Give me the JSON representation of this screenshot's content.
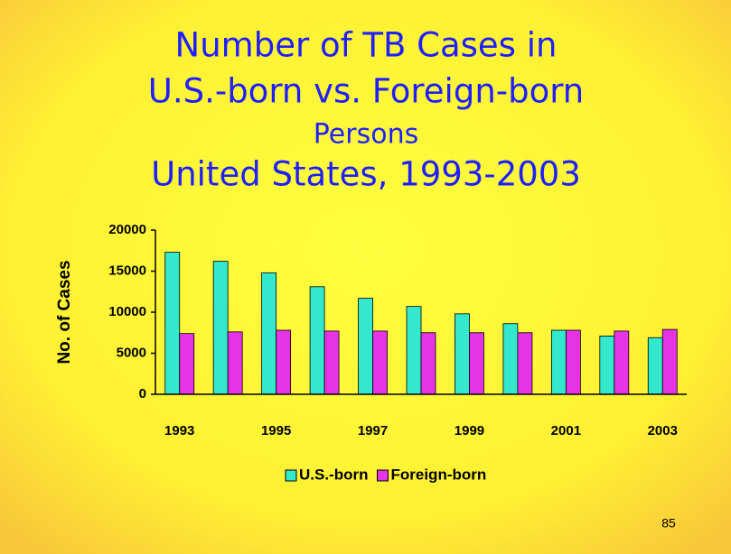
{
  "chart_data": {
    "type": "bar",
    "title": [
      "Number of TB Cases in",
      "U.S.-born vs. Foreign-born",
      "Persons",
      "United States, 1993-2003"
    ],
    "y_label": "No. of Cases",
    "categories": [
      "1993",
      null,
      "1995",
      null,
      "1997",
      null,
      "1999",
      null,
      "2001",
      null,
      "2003"
    ],
    "series": [
      {
        "name": "U.S.-born",
        "color": "#33e8cc",
        "values": [
          17300,
          16200,
          14800,
          13100,
          11700,
          10700,
          9800,
          8600,
          7800,
          7100,
          6900
        ]
      },
      {
        "name": "Foreign-born",
        "color": "#e633e6",
        "values": [
          7400,
          7600,
          7800,
          7700,
          7700,
          7500,
          7500,
          7500,
          7800,
          7700,
          7900
        ]
      }
    ],
    "ylim": [
      0,
      20000
    ],
    "yticks": [
      0,
      5000,
      10000,
      15000,
      20000
    ],
    "grid": false,
    "legend": "bottom"
  },
  "page_number": "85"
}
